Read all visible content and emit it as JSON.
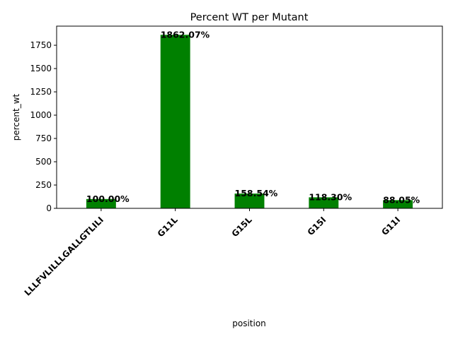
{
  "chart_data": {
    "type": "bar",
    "title": "Percent WT per Mutant",
    "xlabel": "position",
    "ylabel": "percent_wt",
    "categories": [
      "LLLFVLILLLGALLGTLILI",
      "G11L",
      "G15L",
      "G15I",
      "G11I"
    ],
    "values": [
      100.0,
      1862.07,
      158.54,
      118.3,
      88.05
    ],
    "data_labels": [
      "100.00%",
      "1862.07%",
      "158.54%",
      "118.30%",
      "88.05%"
    ],
    "yticks": [
      0,
      250,
      500,
      750,
      1000,
      1250,
      1500,
      1750
    ],
    "ylim": [
      0,
      1955.17
    ],
    "bar_color": "#008000",
    "grid": false,
    "legend": "none"
  }
}
